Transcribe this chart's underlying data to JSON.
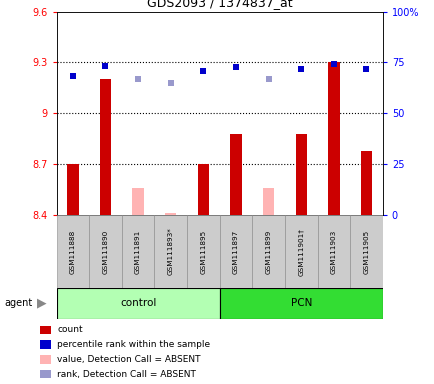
{
  "title": "GDS2093 / 1374837_at",
  "samples": [
    "GSM111888",
    "GSM111890",
    "GSM111891",
    "GSM111893*",
    "GSM111895",
    "GSM111897",
    "GSM111899",
    "GSM111901†",
    "GSM111903",
    "GSM111905"
  ],
  "bar_values": [
    8.7,
    9.2,
    null,
    null,
    8.7,
    8.88,
    null,
    8.88,
    9.3,
    8.78
  ],
  "absent_bar_values": [
    null,
    null,
    8.56,
    8.41,
    null,
    null,
    8.56,
    null,
    null,
    null
  ],
  "rank_values": [
    9.22,
    9.28,
    null,
    null,
    9.25,
    9.27,
    null,
    9.26,
    9.29,
    9.26
  ],
  "absent_rank_values": [
    null,
    null,
    9.2,
    9.18,
    null,
    null,
    9.2,
    null,
    null,
    null
  ],
  "ylim_left": [
    8.4,
    9.6
  ],
  "ylim_right": [
    0,
    100
  ],
  "yticks_left": [
    8.4,
    8.7,
    9.0,
    9.3,
    9.6
  ],
  "yticks_right": [
    0,
    25,
    50,
    75,
    100
  ],
  "ytick_labels_left": [
    "8.4",
    "8.7",
    "9",
    "9.3",
    "9.6"
  ],
  "ytick_labels_right": [
    "0",
    "25",
    "50",
    "75",
    "100%"
  ],
  "hlines": [
    8.7,
    9.0,
    9.3
  ],
  "bar_color": "#cc0000",
  "absent_bar_color": "#ffb3b3",
  "rank_color": "#0000cc",
  "absent_rank_color": "#9999cc",
  "control_color": "#b3ffb3",
  "pcn_color": "#33dd33",
  "bar_width": 0.35,
  "rank_marker_size": 5,
  "legend_items": [
    [
      "#cc0000",
      "count"
    ],
    [
      "#0000cc",
      "percentile rank within the sample"
    ],
    [
      "#ffb3b3",
      "value, Detection Call = ABSENT"
    ],
    [
      "#9999cc",
      "rank, Detection Call = ABSENT"
    ]
  ]
}
